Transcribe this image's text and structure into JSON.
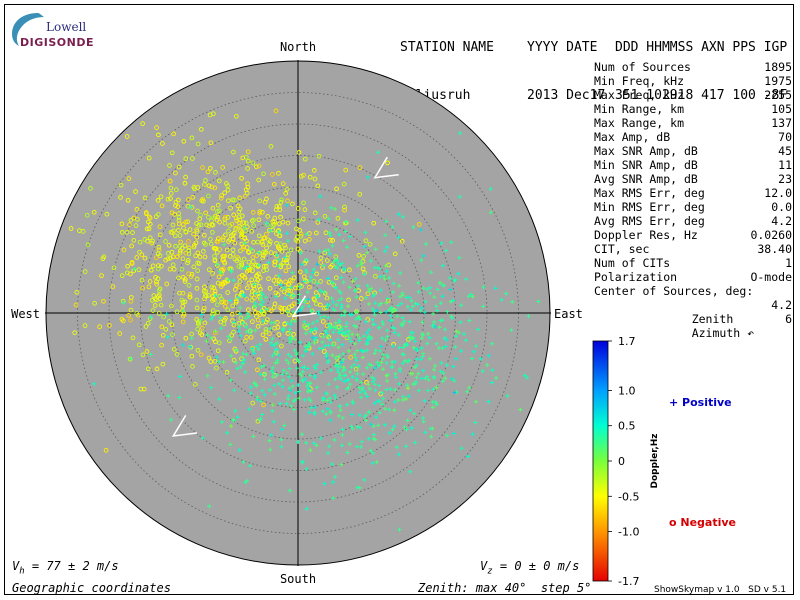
{
  "logo": {
    "line1": "Lowell",
    "line2": "DIGISONDE"
  },
  "header": {
    "labels": [
      "STATION NAME",
      "YYYY DATE",
      "DDD HHMMSS AXN PPS IGP"
    ],
    "station": "Juliusruh",
    "date_values": "2013 Dec17",
    "time_values": "351 102918 417 100 -8F"
  },
  "stats": [
    {
      "label": "Num of Sources",
      "value": "1895"
    },
    {
      "label": "Min Freq, kHz",
      "value": "1975"
    },
    {
      "label": "Max Freq, kHz",
      "value": "2255"
    },
    {
      "label": "Min Range, km",
      "value": "105"
    },
    {
      "label": "Max Range, km",
      "value": "137"
    },
    {
      "label": "Max Amp, dB",
      "value": "70"
    },
    {
      "label": "Max SNR Amp, dB",
      "value": "45"
    },
    {
      "label": "Min SNR Amp, dB",
      "value": "11"
    },
    {
      "label": "Avg SNR Amp, dB",
      "value": "23"
    },
    {
      "label": "Max RMS Err, deg",
      "value": "12.0"
    },
    {
      "label": "Min RMS Err, deg",
      "value": "0.0"
    },
    {
      "label": "Avg RMS Err, deg",
      "value": "4.2"
    },
    {
      "label": "Doppler Res, Hz",
      "value": "0.0260"
    },
    {
      "label": "CIT, sec",
      "value": "38.40"
    },
    {
      "label": "Num of CITs",
      "value": "1"
    },
    {
      "label": "Polarization",
      "value": "O-mode"
    }
  ],
  "center_of_sources": {
    "label": "Center of Sources, deg:",
    "zenith_label": "Zenith",
    "zenith_value": "4.2",
    "azimuth_label": "Azimuth ↶",
    "azimuth_value": "6"
  },
  "footer": {
    "vh_symbol": "V",
    "vh_sub": "h",
    "vh_text": " = 77 ± 2 m/s",
    "vz_symbol": "V",
    "vz_sub": "z",
    "vz_text": " = 0 ± 0 m/s",
    "coords": "Geographic coordinates",
    "zenith_info": "Zenith: max 40°  step 5°",
    "version": "ShowSkymap v 1.0   SD v 5.1"
  },
  "colors": {
    "disk": "#a4a4a4",
    "ring": "#5a5a5a",
    "positive_legend": "#0000c8",
    "negative_legend": "#d40000"
  },
  "chart_data": {
    "type": "scatter",
    "title": "",
    "projection": "polar skymap",
    "directions": {
      "north": "North",
      "south": "South",
      "east": "East",
      "west": "West"
    },
    "zenith_max_deg": 40,
    "zenith_step_deg": 5,
    "grid": true,
    "num_sources": 1895,
    "source_center": {
      "zenith_deg": 4.2,
      "azimuth_deg": 6
    },
    "horizontal_velocity_azimuth_deg": 237,
    "colorbar": {
      "label": "Doppler,Hz",
      "ticks": [
        "1.7",
        "1.0",
        "0.5",
        "0",
        "-0.5",
        "-1.0",
        "-1.7"
      ],
      "tick_values": [
        1.7,
        1.0,
        0.5,
        0,
        -0.5,
        -1.0,
        -1.7
      ],
      "range": [
        -1.7,
        1.7
      ]
    },
    "legend": [
      {
        "marker": "+",
        "name": "Positive"
      },
      {
        "marker": "o",
        "name": "Negative"
      }
    ],
    "clusters": [
      {
        "name": "Negative",
        "marker": "o",
        "count": 900,
        "mean_east_deg": -11,
        "mean_north_deg": 8,
        "spread_deg": 9,
        "doppler_mean": -0.45
      },
      {
        "name": "Positive",
        "marker": "+",
        "count": 995,
        "mean_east_deg": 7,
        "mean_north_deg": -5,
        "spread_deg": 9,
        "doppler_mean": 0.35
      }
    ]
  }
}
